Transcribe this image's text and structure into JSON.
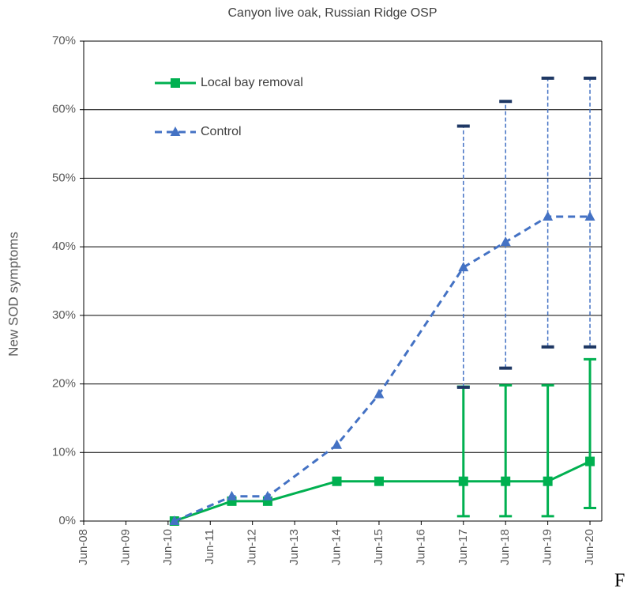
{
  "chart_data": {
    "type": "line",
    "title": "Canyon live oak, Russian Ridge OSP",
    "y_label": "New SOD symptoms",
    "x": [
      2010.57,
      2011.93,
      2012.78,
      2014.42,
      2015.42,
      2017.42,
      2018.42,
      2019.42,
      2020.42
    ],
    "xlim": [
      2008.42,
      2020.7
    ],
    "xticks": [
      {
        "value": 2008.42,
        "label": "Jun-08"
      },
      {
        "value": 2009.42,
        "label": "Jun-09"
      },
      {
        "value": 2010.42,
        "label": "Jun-10"
      },
      {
        "value": 2011.42,
        "label": "Jun-11"
      },
      {
        "value": 2012.42,
        "label": "Jun-12"
      },
      {
        "value": 2013.42,
        "label": "Jun-13"
      },
      {
        "value": 2014.42,
        "label": "Jun-14"
      },
      {
        "value": 2015.42,
        "label": "Jun-15"
      },
      {
        "value": 2016.42,
        "label": "Jun-16"
      },
      {
        "value": 2017.42,
        "label": "Jun-17"
      },
      {
        "value": 2018.42,
        "label": "Jun-18"
      },
      {
        "value": 2019.42,
        "label": "Jun-19"
      },
      {
        "value": 2020.42,
        "label": "Jun-20"
      }
    ],
    "ylim": [
      0,
      70
    ],
    "yticks": [
      {
        "value": 0,
        "label": "0%"
      },
      {
        "value": 10,
        "label": "10%"
      },
      {
        "value": 20,
        "label": "20%"
      },
      {
        "value": 30,
        "label": "30%"
      },
      {
        "value": 40,
        "label": "40%"
      },
      {
        "value": 50,
        "label": "50%"
      },
      {
        "value": 60,
        "label": "60%"
      },
      {
        "value": 70,
        "label": "70%"
      }
    ],
    "grid": true,
    "series": [
      {
        "name": "Local bay removal",
        "color": "#00b050",
        "marker": "square",
        "dash": false,
        "cap_color": "#00b050",
        "values": [
          0,
          2.9,
          2.9,
          5.8,
          5.8,
          5.8,
          5.8,
          5.8,
          8.7
        ],
        "err_low": [
          null,
          null,
          null,
          null,
          null,
          0.7,
          0.7,
          0.7,
          1.9
        ],
        "err_high": [
          null,
          null,
          null,
          null,
          null,
          19.6,
          19.8,
          19.8,
          23.6
        ]
      },
      {
        "name": "Control",
        "color": "#4472c4",
        "marker": "triangle",
        "dash": true,
        "cap_color": "#1f3864",
        "values": [
          0,
          3.6,
          3.6,
          11.1,
          18.5,
          37.0,
          40.7,
          44.4,
          44.4
        ],
        "err_low": [
          null,
          null,
          null,
          null,
          null,
          19.5,
          22.3,
          25.4,
          25.4
        ],
        "err_high": [
          null,
          null,
          null,
          null,
          null,
          57.6,
          61.2,
          64.6,
          64.6
        ]
      }
    ]
  },
  "page_fragment": "F"
}
